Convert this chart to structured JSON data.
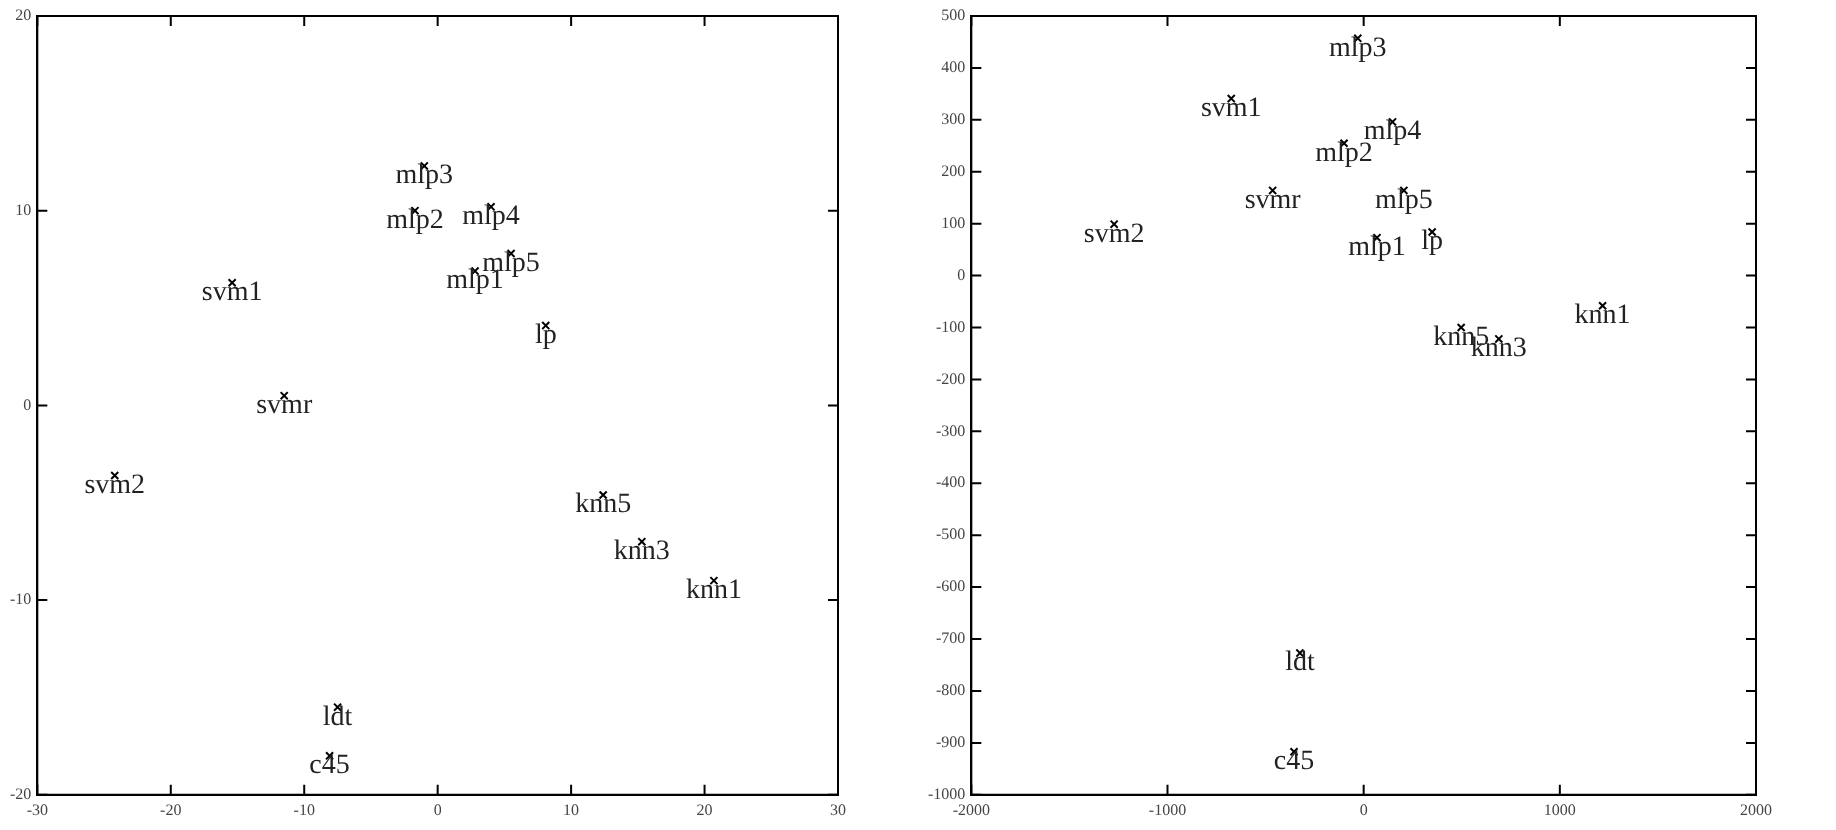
{
  "chart_data": [
    {
      "type": "scatter",
      "marker": "cross",
      "color": "#000000",
      "x": [
        -1.0,
        -1.7,
        4.0,
        5.5,
        2.8,
        8.1,
        -15.4,
        -11.5,
        -24.2,
        12.4,
        15.3,
        20.7,
        -7.5,
        -8.1
      ],
      "values": [
        12.3,
        10.0,
        10.2,
        7.8,
        6.9,
        4.1,
        6.3,
        0.5,
        -3.6,
        -4.6,
        -7.0,
        -9.0,
        -15.5,
        -18.0
      ],
      "xlim": [
        -30,
        30
      ],
      "xticks": [
        -30,
        -20,
        -10,
        0,
        10,
        20,
        30
      ],
      "ylim": [
        -20,
        20
      ],
      "yticks": [
        -20,
        -10,
        0,
        10,
        20
      ],
      "annotations": [
        {
          "text": "mlp3",
          "x": -1.0,
          "y": 12.3
        },
        {
          "text": "mlp2",
          "x": -1.7,
          "y": 10.0
        },
        {
          "text": "mlp4",
          "x": 4.0,
          "y": 10.2
        },
        {
          "text": "mlp5",
          "x": 5.5,
          "y": 7.8
        },
        {
          "text": "mlp1",
          "x": 2.8,
          "y": 6.9
        },
        {
          "text": "lp",
          "x": 8.1,
          "y": 4.1
        },
        {
          "text": "svm1",
          "x": -15.4,
          "y": 6.3
        },
        {
          "text": "svmr",
          "x": -11.5,
          "y": 0.5
        },
        {
          "text": "svm2",
          "x": -24.2,
          "y": -3.6
        },
        {
          "text": "knn5",
          "x": 12.4,
          "y": -4.6
        },
        {
          "text": "knn3",
          "x": 15.3,
          "y": -7.0
        },
        {
          "text": "knn1",
          "x": 20.7,
          "y": -9.0
        },
        {
          "text": "ldt",
          "x": -7.5,
          "y": -15.5
        },
        {
          "text": "c45",
          "x": -8.1,
          "y": -18.0
        }
      ]
    },
    {
      "type": "scatter",
      "marker": "cross",
      "color": "#000000",
      "x": [
        -30,
        -675,
        147,
        -100,
        -464,
        205,
        -1272,
        68,
        349,
        1218,
        497,
        689,
        -325,
        -355
      ],
      "values": [
        457,
        341,
        296,
        255,
        164,
        164,
        99,
        73,
        84,
        -58,
        -100,
        -122,
        -727,
        -917
      ],
      "xlim": [
        -2000,
        2000
      ],
      "xticks": [
        -2000,
        -1000,
        0,
        1000,
        2000
      ],
      "ylim": [
        -1000,
        500
      ],
      "yticks": [
        -1000,
        -900,
        -800,
        -700,
        -600,
        -500,
        -400,
        -300,
        -200,
        -100,
        0,
        100,
        200,
        300,
        400,
        500
      ],
      "annotations": [
        {
          "text": "mlp3",
          "x": -30,
          "y": 457
        },
        {
          "text": "svm1",
          "x": -675,
          "y": 341
        },
        {
          "text": "mlp4",
          "x": 147,
          "y": 296
        },
        {
          "text": "mlp2",
          "x": -100,
          "y": 255
        },
        {
          "text": "svmr",
          "x": -464,
          "y": 164
        },
        {
          "text": "mlp5",
          "x": 205,
          "y": 164
        },
        {
          "text": "svm2",
          "x": -1272,
          "y": 99
        },
        {
          "text": "mlp1",
          "x": 68,
          "y": 73
        },
        {
          "text": "lp",
          "x": 349,
          "y": 84
        },
        {
          "text": "knn1",
          "x": 1218,
          "y": -58
        },
        {
          "text": "knn5",
          "x": 497,
          "y": -100
        },
        {
          "text": "knn3",
          "x": 689,
          "y": -122
        },
        {
          "text": "ldt",
          "x": -325,
          "y": -727
        },
        {
          "text": "c45",
          "x": -355,
          "y": -917
        }
      ]
    }
  ]
}
